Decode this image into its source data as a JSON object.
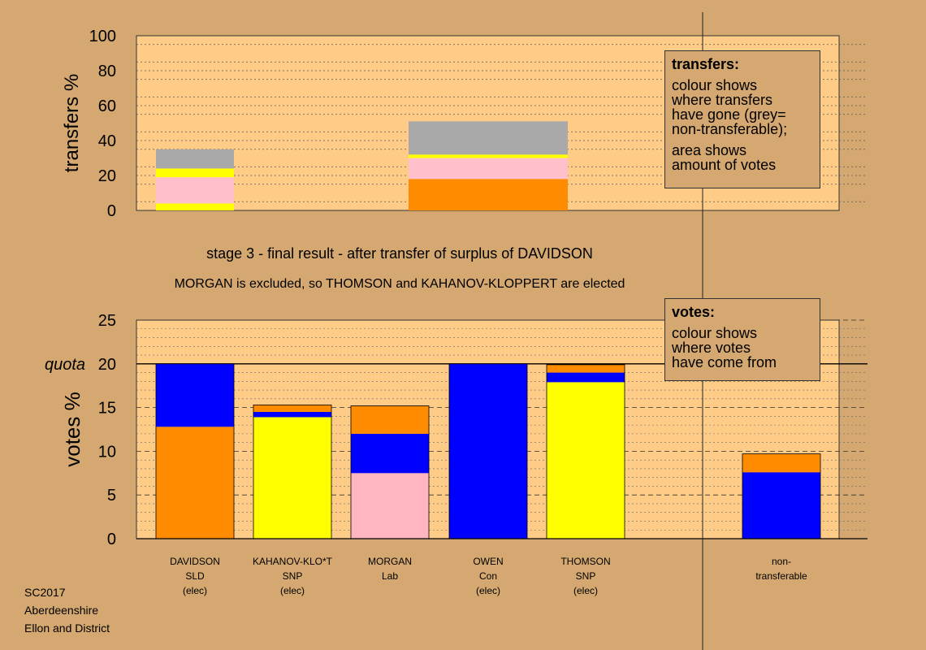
{
  "chart_data": [
    {
      "type": "bar",
      "stacked": true,
      "ylabel": "transfers %",
      "ylim": [
        0,
        100
      ],
      "yticks": [
        0,
        20,
        40,
        60,
        80,
        100
      ],
      "bars": [
        {
          "candidate": "DAVIDSON",
          "segments": [
            {
              "color": "#ffff00",
              "value": 4
            },
            {
              "color": "#ffc0cb",
              "value": 15
            },
            {
              "color": "#ffff00",
              "value": 5
            },
            {
              "color": "#a9a9a9",
              "value": 11
            }
          ]
        },
        {
          "candidate": "MORGAN",
          "segments": [
            {
              "color": "#ff8c00",
              "value": 18
            },
            {
              "color": "#ffc0cb",
              "value": 12
            },
            {
              "color": "#ffff00",
              "value": 2
            },
            {
              "color": "#a9a9a9",
              "value": 19
            }
          ]
        }
      ],
      "legend": {
        "title": "transfers:",
        "lines1": [
          "colour shows",
          "where transfers",
          "have gone (grey=",
          "non-transferable);"
        ],
        "lines2": [
          "area shows",
          "amount of votes"
        ]
      }
    },
    {
      "type": "bar",
      "stacked": true,
      "ylabel": "votes %",
      "ylim": [
        0,
        25
      ],
      "yticks": [
        0,
        5,
        10,
        15,
        20,
        25
      ],
      "quota": {
        "label": "quota",
        "value": 20
      },
      "categories": [
        [
          "DAVIDSON",
          "SLD",
          "(elec)"
        ],
        [
          "KAHANOV-KLO*T",
          "SNP",
          "(elec)"
        ],
        [
          "MORGAN",
          "Lab"
        ],
        [
          "OWEN",
          "Con",
          "(elec)"
        ],
        [
          "THOMSON",
          "SNP",
          "(elec)"
        ],
        [
          "non-",
          "transferable"
        ]
      ],
      "bars": [
        {
          "candidate": "DAVIDSON",
          "segments": [
            {
              "color": "#ff8c00",
              "value": 12.8
            },
            {
              "color": "#0000ff",
              "value": 7.2
            }
          ]
        },
        {
          "candidate": "KAHANOV-KLO*T",
          "segments": [
            {
              "color": "#ffff00",
              "value": 13.9
            },
            {
              "color": "#0000ff",
              "value": 0.6
            },
            {
              "color": "#ff8c00",
              "value": 0.8
            }
          ]
        },
        {
          "candidate": "MORGAN",
          "segments": [
            {
              "color": "#ffb6c1",
              "value": 7.5
            },
            {
              "color": "#0000ff",
              "value": 4.5
            },
            {
              "color": "#ff8c00",
              "value": 3.2
            }
          ]
        },
        {
          "candidate": "OWEN",
          "segments": [
            {
              "color": "#0000ff",
              "value": 20
            }
          ]
        },
        {
          "candidate": "THOMSON",
          "segments": [
            {
              "color": "#ffff00",
              "value": 17.9
            },
            {
              "color": "#0000ff",
              "value": 1.1
            },
            {
              "color": "#ff8c00",
              "value": 0.9
            }
          ]
        },
        {
          "candidate": "non-transferable",
          "segments": [
            {
              "color": "#0000ff",
              "value": 7.6
            },
            {
              "color": "#ff8c00",
              "value": 2.1
            }
          ]
        }
      ],
      "legend": {
        "title": "votes:",
        "lines1": [
          "colour shows",
          "where votes",
          "have come from"
        ]
      }
    }
  ],
  "headings": {
    "stage": "stage 3 - final result - after transfer of surplus of DAVIDSON",
    "summary": "MORGAN is excluded, so THOMSON and KAHANOV-KLOPPERT are elected"
  },
  "footer": {
    "line1": "SC2017",
    "line2": "Aberdeenshire",
    "line3": "Ellon and District"
  }
}
